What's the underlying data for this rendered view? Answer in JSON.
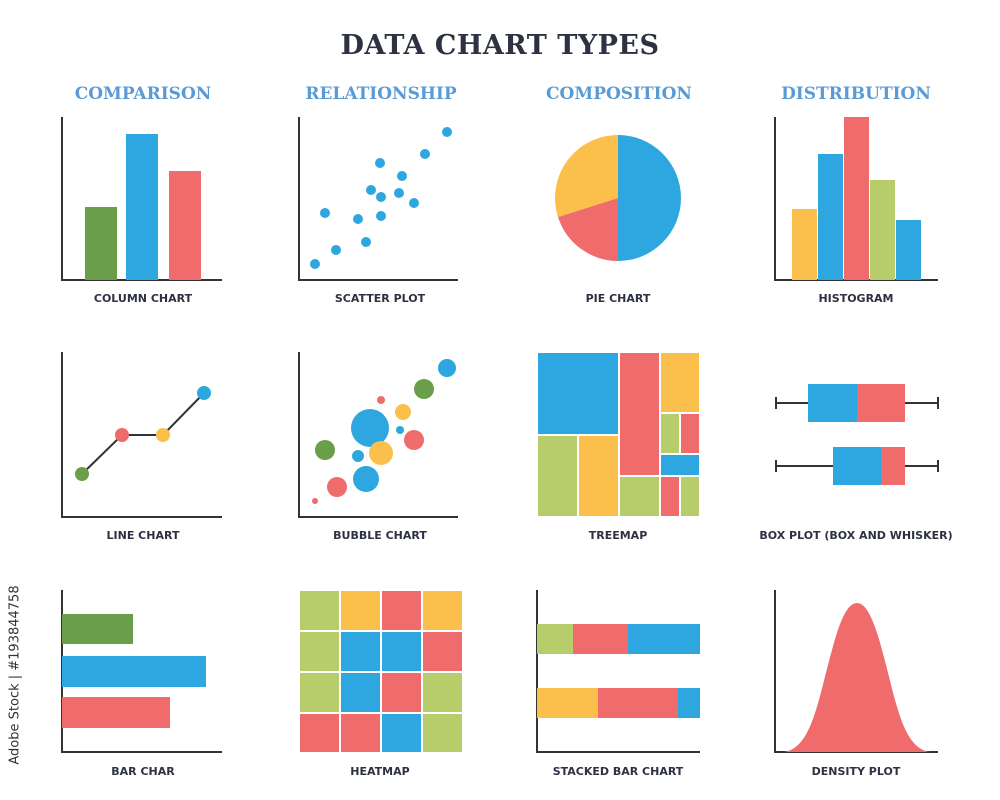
{
  "title": "DATA CHART TYPES",
  "columns": [
    "COMPARISON",
    "RELATIONSHIP",
    "COMPOSITION",
    "DISTRIBUTION"
  ],
  "captions": [
    "COLUMN CHART",
    "SCATTER PLOT",
    "PIE CHART",
    "HISTOGRAM",
    "LINE CHART",
    "BUBBLE CHART",
    "TREEMAP",
    "BOX PLOT (BOX AND WHISKER)",
    "BAR CHAR",
    "HEATMAP",
    "STACKED BAR CHART",
    "DENSITY PLOT"
  ],
  "stock_id": "Adobe Stock | #193844758",
  "colors": {
    "green": "#6a9e4a",
    "blue": "#2ea7e0",
    "red": "#f06b6b",
    "yellow": "#fbbf4b",
    "lime": "#b7cc6a",
    "axis": "#333333"
  }
}
